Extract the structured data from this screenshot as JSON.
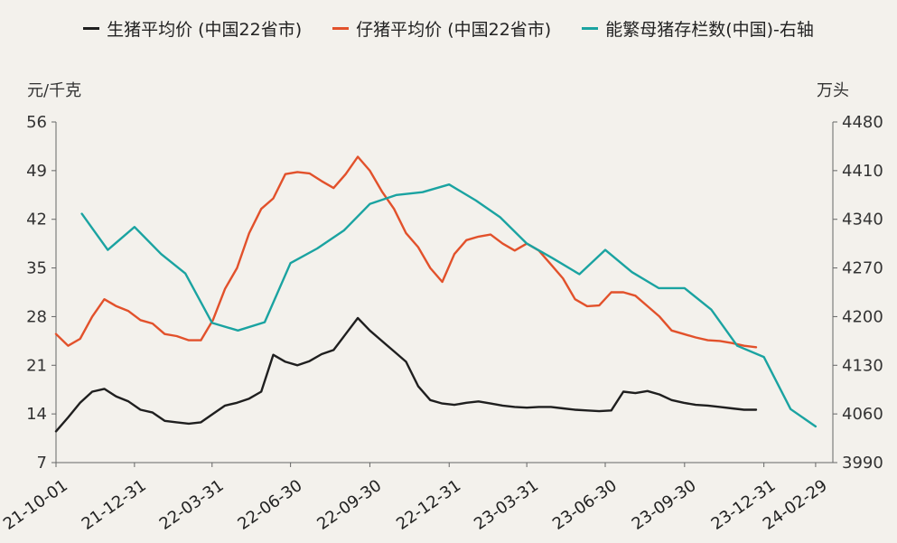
{
  "legend": {
    "items": [
      {
        "label": "生猪平均价 (中国22省市)",
        "color": "#1f1f1f"
      },
      {
        "label": "仔猪平均价 (中国22省市)",
        "color": "#e2512b"
      },
      {
        "label": "能繁母猪存栏数(中国)-右轴",
        "color": "#1aa3a1"
      }
    ]
  },
  "chart_data": {
    "type": "line",
    "left_axis": {
      "label": "元/千克",
      "min": 7,
      "max": 56,
      "ticks": [
        7,
        14,
        21,
        28,
        35,
        42,
        49,
        56
      ]
    },
    "right_axis": {
      "label": "万头",
      "min": 3990,
      "max": 4480,
      "ticks": [
        3990,
        4060,
        4130,
        4200,
        4270,
        4340,
        4410,
        4480
      ]
    },
    "x_range": [
      "2021-10-01",
      "2024-03-20"
    ],
    "x_ticks": [
      "21-10-01",
      "21-12-31",
      "22-03-31",
      "22-06-30",
      "22-09-30",
      "22-12-31",
      "23-03-31",
      "23-06-30",
      "23-09-30",
      "23-12-31",
      "24-02-29"
    ],
    "grid": false,
    "legend_position": "top",
    "series": [
      {
        "name": "生猪平均价 (中国22省市)",
        "axis": "left",
        "color": "#1f1f1f",
        "x": [
          "2021-10-01",
          "2021-10-15",
          "2021-10-29",
          "2021-11-12",
          "2021-11-26",
          "2021-12-10",
          "2021-12-24",
          "2022-01-07",
          "2022-01-21",
          "2022-02-04",
          "2022-02-18",
          "2022-03-04",
          "2022-03-18",
          "2022-04-01",
          "2022-04-15",
          "2022-04-29",
          "2022-05-13",
          "2022-05-27",
          "2022-06-10",
          "2022-06-24",
          "2022-07-08",
          "2022-07-22",
          "2022-08-05",
          "2022-08-19",
          "2022-09-02",
          "2022-09-16",
          "2022-09-30",
          "2022-10-14",
          "2022-10-28",
          "2022-11-11",
          "2022-11-25",
          "2022-12-09",
          "2022-12-23",
          "2023-01-06",
          "2023-01-20",
          "2023-02-03",
          "2023-02-17",
          "2023-03-03",
          "2023-03-17",
          "2023-03-31",
          "2023-04-14",
          "2023-04-28",
          "2023-05-12",
          "2023-05-26",
          "2023-06-09",
          "2023-06-23",
          "2023-07-07",
          "2023-07-21",
          "2023-08-04",
          "2023-08-18",
          "2023-09-01",
          "2023-09-15",
          "2023-09-29",
          "2023-10-13",
          "2023-10-27",
          "2023-11-10",
          "2023-11-24",
          "2023-12-08",
          "2023-12-22"
        ],
        "values": [
          11.5,
          13.5,
          15.6,
          17.2,
          17.6,
          16.5,
          15.8,
          14.6,
          14.2,
          13.0,
          12.8,
          12.6,
          12.8,
          14.0,
          15.2,
          15.6,
          16.2,
          17.2,
          22.5,
          21.5,
          21.0,
          21.6,
          22.6,
          23.2,
          25.5,
          27.8,
          26.0,
          24.5,
          23.0,
          21.5,
          18.0,
          16.0,
          15.5,
          15.3,
          15.6,
          15.8,
          15.5,
          15.2,
          15.0,
          14.9,
          15.0,
          15.0,
          14.8,
          14.6,
          14.5,
          14.4,
          14.5,
          17.2,
          17.0,
          17.3,
          16.8,
          16.0,
          15.6,
          15.3,
          15.2,
          15.0,
          14.8,
          14.6,
          14.6
        ]
      },
      {
        "name": "仔猪平均价 (中国22省市)",
        "axis": "left",
        "color": "#e2512b",
        "x": [
          "2021-10-01",
          "2021-10-15",
          "2021-10-29",
          "2021-11-12",
          "2021-11-26",
          "2021-12-10",
          "2021-12-24",
          "2022-01-07",
          "2022-01-21",
          "2022-02-04",
          "2022-02-18",
          "2022-03-04",
          "2022-03-18",
          "2022-04-01",
          "2022-04-15",
          "2022-04-29",
          "2022-05-13",
          "2022-05-27",
          "2022-06-10",
          "2022-06-24",
          "2022-07-08",
          "2022-07-22",
          "2022-08-05",
          "2022-08-19",
          "2022-09-02",
          "2022-09-16",
          "2022-09-30",
          "2022-10-14",
          "2022-10-28",
          "2022-11-11",
          "2022-11-25",
          "2022-12-09",
          "2022-12-23",
          "2023-01-06",
          "2023-01-20",
          "2023-02-03",
          "2023-02-17",
          "2023-03-03",
          "2023-03-17",
          "2023-03-31",
          "2023-04-14",
          "2023-04-28",
          "2023-05-12",
          "2023-05-26",
          "2023-06-09",
          "2023-06-23",
          "2023-07-07",
          "2023-07-21",
          "2023-08-04",
          "2023-08-18",
          "2023-09-01",
          "2023-09-15",
          "2023-09-29",
          "2023-10-13",
          "2023-10-27",
          "2023-11-10",
          "2023-11-24",
          "2023-12-08",
          "2023-12-22"
        ],
        "values": [
          25.5,
          23.8,
          24.8,
          28.0,
          30.5,
          29.5,
          28.8,
          27.5,
          27.0,
          25.5,
          25.2,
          24.6,
          24.6,
          27.5,
          32.0,
          35.0,
          40.0,
          43.5,
          45.0,
          48.5,
          48.8,
          48.6,
          47.5,
          46.5,
          48.5,
          51.0,
          49.0,
          46.0,
          43.5,
          40.0,
          38.0,
          35.0,
          33.0,
          37.0,
          39.0,
          39.5,
          39.8,
          38.5,
          37.5,
          38.5,
          37.5,
          35.5,
          33.5,
          30.5,
          29.5,
          29.6,
          31.5,
          31.5,
          31.0,
          29.5,
          28.0,
          26.0,
          25.5,
          25.0,
          24.6,
          24.5,
          24.2,
          23.8,
          23.6
        ]
      },
      {
        "name": "能繁母猪存栏数(中国)-右轴",
        "axis": "right",
        "color": "#1aa3a1",
        "x": [
          "2021-10-31",
          "2021-11-30",
          "2021-12-31",
          "2022-01-31",
          "2022-02-28",
          "2022-03-31",
          "2022-04-30",
          "2022-05-31",
          "2022-06-30",
          "2022-07-31",
          "2022-08-31",
          "2022-09-30",
          "2022-10-31",
          "2022-11-30",
          "2022-12-31",
          "2023-01-31",
          "2023-02-28",
          "2023-03-31",
          "2023-04-30",
          "2023-05-31",
          "2023-06-30",
          "2023-07-31",
          "2023-08-31",
          "2023-09-30",
          "2023-10-31",
          "2023-11-30",
          "2023-12-31",
          "2024-01-31",
          "2024-02-29"
        ],
        "values": [
          4348,
          4296,
          4329,
          4290,
          4262,
          4191,
          4180,
          4192,
          4277,
          4298,
          4324,
          4362,
          4375,
          4379,
          4390,
          4367,
          4343,
          4305,
          4284,
          4261,
          4296,
          4264,
          4241,
          4241,
          4210,
          4158,
          4142,
          4067,
          4042
        ]
      }
    ]
  }
}
